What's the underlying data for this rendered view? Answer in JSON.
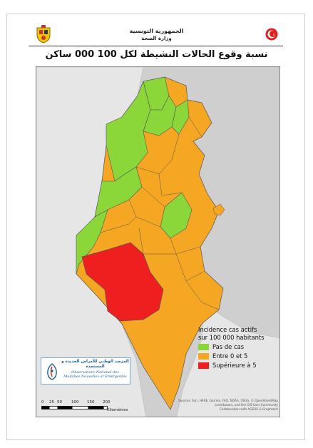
{
  "header": {
    "line_1": "الجمهورية التونسية",
    "line_2": "وزارة الصحة"
  },
  "map_title": "نسبة وقوع الحالات النشيطة لكل 100 000 ساكن",
  "legend": {
    "title_line_1": "Incidence cas actifs",
    "title_line_2": "sur 100 000 habitants",
    "items": [
      {
        "label": "Pas de cas",
        "color": "#8bd73a"
      },
      {
        "label": "Entre 0 et 5",
        "color": "#f5a623"
      },
      {
        "label": "Supérieure à 5",
        "color": "#f01f1f"
      }
    ]
  },
  "logo": {
    "arabic": "المرصد الوطني للأمراض الجديدة و المستجدة",
    "french_line_1": "Observatoire National des",
    "french_line_2": "Maladies Nouvelles et Emergentes"
  },
  "scale": {
    "ticks": [
      "0",
      "25",
      "50",
      "100",
      "150",
      "200"
    ],
    "unit": "Kilomètres"
  },
  "attribution": {
    "line_1": "Sources: Esri, HERE, Garmin, FAO, NOAA, USGS, © OpenStreetMap",
    "line_2": "contributors, and the GIS User Community",
    "line_3": "Collaboration with AGEOS & Graphtech"
  },
  "colors": {
    "no_cases": "#8bd73a",
    "between_0_5": "#f5a623",
    "above_5": "#f01f1f",
    "land": "#e6e6e6",
    "sea": "#cfcfcf"
  }
}
